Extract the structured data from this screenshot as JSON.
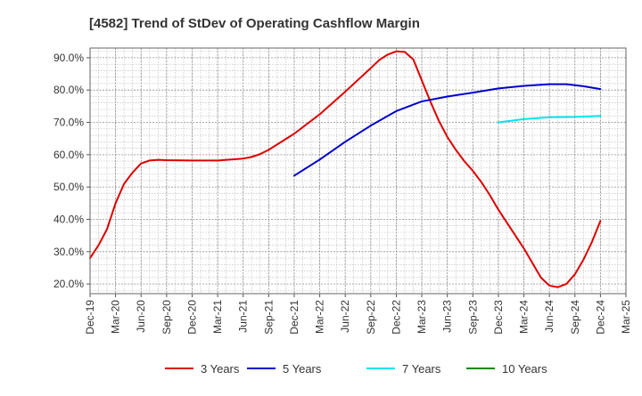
{
  "chart_data": {
    "type": "line",
    "title": "[4582]  Trend of StDev of Operating Cashflow Margin",
    "xlabel": "",
    "ylabel": "",
    "ylim": [
      17,
      93
    ],
    "y_ticks": [
      "20.0%",
      "30.0%",
      "40.0%",
      "50.0%",
      "60.0%",
      "70.0%",
      "80.0%",
      "90.0%"
    ],
    "x_ticks": [
      "Dec-19",
      "Mar-20",
      "Jun-20",
      "Sep-20",
      "Dec-20",
      "Mar-21",
      "Jun-21",
      "Sep-21",
      "Dec-21",
      "Mar-22",
      "Jun-22",
      "Sep-22",
      "Dec-22",
      "Mar-23",
      "Jun-23",
      "Sep-23",
      "Dec-23",
      "Mar-24",
      "Jun-24",
      "Sep-24",
      "Dec-24",
      "Mar-25"
    ],
    "grid": true,
    "legend_position": "bottom",
    "series": [
      {
        "name": "3 Years",
        "color": "#dd0000",
        "points": [
          [
            "Dec-19",
            28.0
          ],
          [
            "Jan-20",
            32.0
          ],
          [
            "Feb-20",
            37.0
          ],
          [
            "Mar-20",
            45.0
          ],
          [
            "Apr-20",
            51.0
          ],
          [
            "May-20",
            54.5
          ],
          [
            "Jun-20",
            57.3
          ],
          [
            "Jul-20",
            58.2
          ],
          [
            "Aug-20",
            58.4
          ],
          [
            "Sep-20",
            58.3
          ],
          [
            "Dec-20",
            58.2
          ],
          [
            "Mar-21",
            58.2
          ],
          [
            "Jun-21",
            58.8
          ],
          [
            "Jul-21",
            59.3
          ],
          [
            "Aug-21",
            60.2
          ],
          [
            "Sep-21",
            61.5
          ],
          [
            "Dec-21",
            66.5
          ],
          [
            "Mar-22",
            72.5
          ],
          [
            "Jun-22",
            79.5
          ],
          [
            "Sep-22",
            86.8
          ],
          [
            "Oct-22",
            89.3
          ],
          [
            "Nov-22",
            91.0
          ],
          [
            "Dec-22",
            92.0
          ],
          [
            "Jan-23",
            91.8
          ],
          [
            "Feb-23",
            89.5
          ],
          [
            "Mar-23",
            83.0
          ],
          [
            "Apr-23",
            76.5
          ],
          [
            "May-23",
            70.5
          ],
          [
            "Jun-23",
            65.5
          ],
          [
            "Jul-23",
            61.5
          ],
          [
            "Aug-23",
            58.0
          ],
          [
            "Sep-23",
            55.0
          ],
          [
            "Oct-23",
            51.5
          ],
          [
            "Nov-23",
            47.5
          ],
          [
            "Dec-23",
            43.0
          ],
          [
            "Mar-24",
            31.0
          ],
          [
            "Apr-24",
            26.5
          ],
          [
            "May-24",
            22.0
          ],
          [
            "Jun-24",
            19.5
          ],
          [
            "Jul-24",
            19.0
          ],
          [
            "Aug-24",
            20.0
          ],
          [
            "Sep-24",
            23.0
          ],
          [
            "Oct-24",
            27.5
          ],
          [
            "Nov-24",
            33.0
          ],
          [
            "Dec-24",
            39.5
          ]
        ]
      },
      {
        "name": "5 Years",
        "color": "#0000cc",
        "points": [
          [
            "Dec-21",
            53.5
          ],
          [
            "Mar-22",
            58.5
          ],
          [
            "Jun-22",
            64.0
          ],
          [
            "Sep-22",
            69.0
          ],
          [
            "Dec-22",
            73.5
          ],
          [
            "Mar-23",
            76.5
          ],
          [
            "Jun-23",
            78.0
          ],
          [
            "Sep-23",
            79.2
          ],
          [
            "Dec-23",
            80.5
          ],
          [
            "Mar-24",
            81.3
          ],
          [
            "Jun-24",
            81.8
          ],
          [
            "Aug-24",
            81.8
          ],
          [
            "Oct-24",
            81.2
          ],
          [
            "Dec-24",
            80.3
          ]
        ]
      },
      {
        "name": "7 Years",
        "color": "#00e5ee",
        "points": [
          [
            "Dec-23",
            70.0
          ],
          [
            "Mar-24",
            71.0
          ],
          [
            "Jun-24",
            71.6
          ],
          [
            "Sep-24",
            71.7
          ],
          [
            "Dec-24",
            72.0
          ]
        ]
      },
      {
        "name": "10 Years",
        "color": "#008800",
        "points": []
      }
    ]
  }
}
